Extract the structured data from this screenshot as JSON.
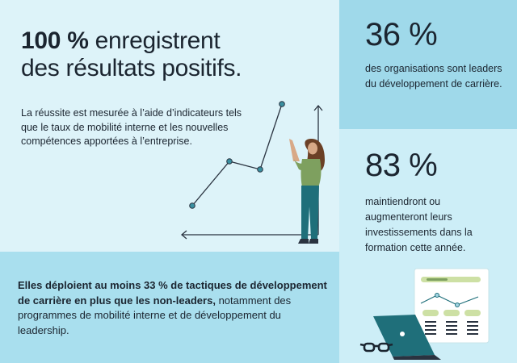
{
  "left": {
    "headline_bold": "100 %",
    "headline_rest": "enregistrent",
    "headline_line2": "des résultats positifs.",
    "body": "La réussite est mesurée à l’aide d’indicateurs tels que le taux de mobilité interne et les nouvelles compétences apportées à l’entreprise."
  },
  "bottom": {
    "text_bold": "Elles déploient au moins 33 % de tactiques de développement de carrière en plus que les non-leaders,",
    "text_rest": "notamment des programmes de mobilité interne et de développement du leadership."
  },
  "stats": [
    {
      "value": "36 %",
      "description": "des organisations sont leaders du développement de carrière."
    },
    {
      "value": "83 %",
      "description": "maintiendront ou augmenteront leurs investissements dans la formation cette année."
    }
  ],
  "colors": {
    "dark_teal": "#1f6f7a",
    "line": "#2a3340",
    "point": "#3a8fa0"
  },
  "icons": [
    "line-chart-illustration",
    "woman-figure-illustration",
    "laptop-illustration",
    "glasses-illustration",
    "dashboard-illustration"
  ]
}
